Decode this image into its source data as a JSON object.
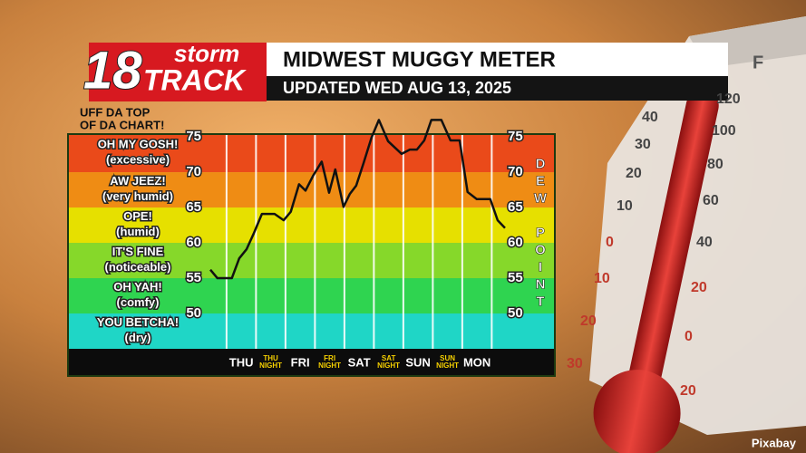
{
  "chart_data": {
    "type": "line",
    "logo": {
      "number": "18",
      "top": "storm",
      "bottom": "TRACK"
    },
    "title": "MIDWEST MUGGY METER",
    "subtitle": "UPDATED WED AUG 13, 2025",
    "annotation": [
      "UFF DA TOP",
      "OF DA CHART!"
    ],
    "y_label": "DEW POINT",
    "credit": "Pixabay",
    "ylim": [
      45,
      75.4
    ],
    "yticks": [
      50,
      55,
      60,
      65,
      70,
      75
    ],
    "xlim": [
      -0.55,
      9.45
    ],
    "categories": [
      "THU",
      "THU NIGHT",
      "FRI",
      "FRI NIGHT",
      "SAT",
      "SAT NIGHT",
      "SUN",
      "SUN NIGHT",
      "MON"
    ],
    "bands": [
      {
        "name": "OH MY GOSH!",
        "note": "(excessive)",
        "from": 70,
        "color": "#ea4a1a"
      },
      {
        "name": "AW JEEZ!",
        "note": "(very humid)",
        "from": 65,
        "color": "#ef8c14"
      },
      {
        "name": "OPE!",
        "note": "(humid)",
        "from": 60,
        "color": "#e6e000"
      },
      {
        "name": "IT'S FINE",
        "note": "(noticeable)",
        "from": 55,
        "color": "#86d82a"
      },
      {
        "name": "OH YAH!",
        "note": "(comfy)",
        "from": 50,
        "color": "#2fd450"
      },
      {
        "name": "YOU BETCHA!",
        "note": "(dry)",
        "from": 45,
        "color": "#1fd6c6"
      }
    ],
    "series": [
      {
        "color": "#111111",
        "x": [
          -0.55,
          -0.31,
          0.18,
          0.43,
          0.68,
          0.92,
          1.2,
          1.63,
          1.94,
          2.18,
          2.46,
          2.68,
          2.95,
          3.23,
          3.48,
          3.69,
          3.97,
          4.18,
          4.4,
          4.65,
          4.92,
          5.17,
          5.48,
          5.94,
          6.22,
          6.46,
          6.71,
          6.95,
          7.29,
          7.6,
          7.91,
          8.18,
          8.49,
          8.95,
          9.2,
          9.45
        ],
        "values": [
          56.2,
          55,
          55,
          57.8,
          59.1,
          61.3,
          64.1,
          64.1,
          63.2,
          64.4,
          68.3,
          67.4,
          69.6,
          71.5,
          67.1,
          70.4,
          65.1,
          66.9,
          68.1,
          71.3,
          74.9,
          77.4,
          74.4,
          72.6,
          73.2,
          73.2,
          74.5,
          77.4,
          77.4,
          74.5,
          74.5,
          67.2,
          66.2,
          66.2,
          63.2,
          62.1
        ]
      }
    ],
    "thermometer": {
      "unit": "F",
      "scale_a": [
        "120",
        "100",
        "80",
        "60",
        "40",
        "20",
        "0",
        "20"
      ],
      "scale_b": [
        "40",
        "30",
        "20",
        "10",
        "0",
        "10",
        "20",
        "30"
      ]
    }
  }
}
